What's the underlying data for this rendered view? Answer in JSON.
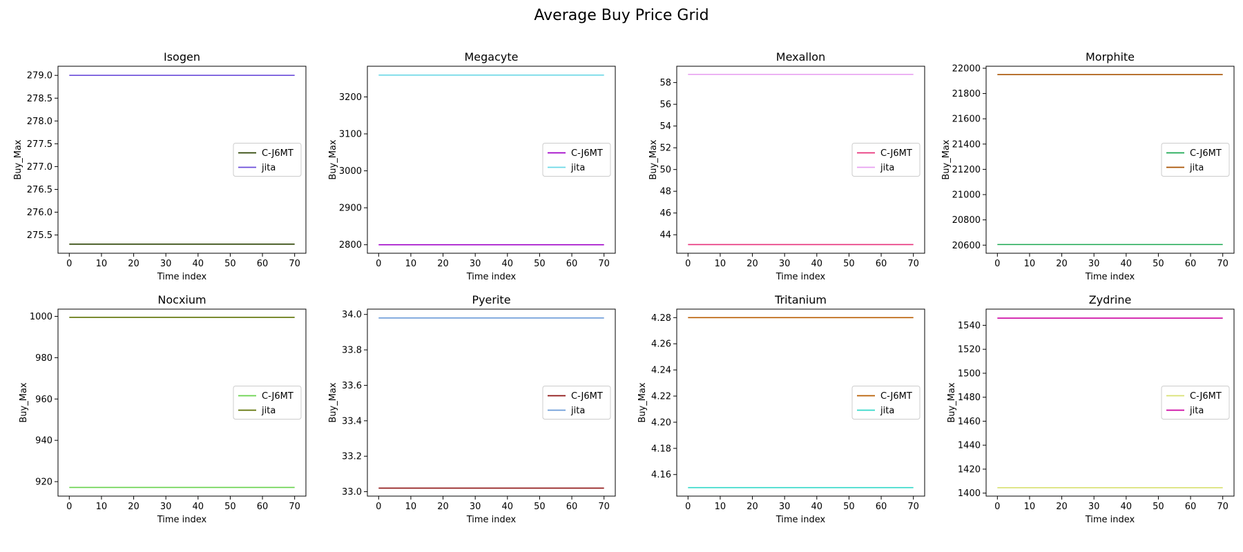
{
  "figure": {
    "title": "Average Buy Price Grid"
  },
  "chart_data": [
    {
      "type": "line",
      "title": "Isogen",
      "xlabel": "Time index",
      "ylabel": "Buy_Max",
      "xlim": [
        -3.5,
        73.5
      ],
      "ylim": [
        275.1,
        279.2
      ],
      "xticks": [
        0,
        10,
        20,
        30,
        40,
        50,
        60,
        70
      ],
      "yticks": [
        275.5,
        276.0,
        276.5,
        277.0,
        277.5,
        278.0,
        278.5,
        279.0
      ],
      "ydecimals": 1,
      "legend": "center-right",
      "series": [
        {
          "name": "C-J6MT",
          "color": "#2a4200",
          "x": [
            0,
            70
          ],
          "values": [
            275.3,
            275.3
          ]
        },
        {
          "name": "jita",
          "color": "#6a4bd9",
          "x": [
            0,
            70
          ],
          "values": [
            279.0,
            279.0
          ]
        }
      ]
    },
    {
      "type": "line",
      "title": "Megacyte",
      "xlabel": "Time index",
      "ylabel": "Buy_Max",
      "xlim": [
        -3.5,
        73.5
      ],
      "ylim": [
        2777,
        3283
      ],
      "xticks": [
        0,
        10,
        20,
        30,
        40,
        50,
        60,
        70
      ],
      "yticks": [
        2800,
        2900,
        3000,
        3100,
        3200
      ],
      "ydecimals": 0,
      "legend": "center-right",
      "series": [
        {
          "name": "C-J6MT",
          "color": "#a000c8",
          "x": [
            0,
            70
          ],
          "values": [
            2800,
            2800
          ]
        },
        {
          "name": "jita",
          "color": "#6ad8e6",
          "x": [
            0,
            70
          ],
          "values": [
            3259,
            3259
          ]
        }
      ]
    },
    {
      "type": "line",
      "title": "Mexallon",
      "xlabel": "Time index",
      "ylabel": "Buy_Max",
      "xlim": [
        -3.5,
        73.5
      ],
      "ylim": [
        42.3,
        59.5
      ],
      "xticks": [
        0,
        10,
        20,
        30,
        40,
        50,
        60,
        70
      ],
      "yticks": [
        44,
        46,
        48,
        50,
        52,
        54,
        56,
        58
      ],
      "ydecimals": 0,
      "legend": "center-right",
      "series": [
        {
          "name": "C-J6MT",
          "color": "#e8307a",
          "x": [
            0,
            70
          ],
          "values": [
            43.1,
            43.1
          ]
        },
        {
          "name": "jita",
          "color": "#e8a0f0",
          "x": [
            0,
            70
          ],
          "values": [
            58.75,
            58.75
          ]
        }
      ]
    },
    {
      "type": "line",
      "title": "Morphite",
      "xlabel": "Time index",
      "ylabel": "Buy_Max",
      "xlim": [
        -3.5,
        73.5
      ],
      "ylim": [
        20536,
        22016
      ],
      "xticks": [
        0,
        10,
        20,
        30,
        40,
        50,
        60,
        70
      ],
      "yticks": [
        20600,
        20800,
        21000,
        21200,
        21400,
        21600,
        21800,
        22000
      ],
      "ydecimals": 0,
      "legend": "center-right",
      "series": [
        {
          "name": "C-J6MT",
          "color": "#1aa850",
          "x": [
            0,
            70
          ],
          "values": [
            20605,
            20605
          ]
        },
        {
          "name": "jita",
          "color": "#a85200",
          "x": [
            0,
            70
          ],
          "values": [
            21950,
            21950
          ]
        }
      ]
    },
    {
      "type": "line",
      "title": "Nocxium",
      "xlabel": "Time index",
      "ylabel": "Buy_Max",
      "xlim": [
        -3.5,
        73.5
      ],
      "ylim": [
        913,
        1003.5
      ],
      "xticks": [
        0,
        10,
        20,
        30,
        40,
        50,
        60,
        70
      ],
      "yticks": [
        920,
        940,
        960,
        980,
        1000
      ],
      "ydecimals": 0,
      "legend": "center-right",
      "series": [
        {
          "name": "C-J6MT",
          "color": "#66d24a",
          "x": [
            0,
            70
          ],
          "values": [
            917.2,
            917.2
          ]
        },
        {
          "name": "jita",
          "color": "#5c7000",
          "x": [
            0,
            70
          ],
          "values": [
            999.5,
            999.5
          ]
        }
      ]
    },
    {
      "type": "line",
      "title": "Pyerite",
      "xlabel": "Time index",
      "ylabel": "Buy_Max",
      "xlim": [
        -3.5,
        73.5
      ],
      "ylim": [
        32.975,
        34.03
      ],
      "xticks": [
        0,
        10,
        20,
        30,
        40,
        50,
        60,
        70
      ],
      "yticks": [
        33.0,
        33.2,
        33.4,
        33.6,
        33.8,
        34.0
      ],
      "ydecimals": 1,
      "legend": "center-right",
      "series": [
        {
          "name": "C-J6MT",
          "color": "#8c1010",
          "x": [
            0,
            70
          ],
          "values": [
            33.02,
            33.02
          ]
        },
        {
          "name": "jita",
          "color": "#6a9ad8",
          "x": [
            0,
            70
          ],
          "values": [
            33.98,
            33.98
          ]
        }
      ]
    },
    {
      "type": "line",
      "title": "Tritanium",
      "xlabel": "Time index",
      "ylabel": "Buy_Max",
      "xlim": [
        -3.5,
        73.5
      ],
      "ylim": [
        4.1435,
        4.2865
      ],
      "xticks": [
        0,
        10,
        20,
        30,
        40,
        50,
        60,
        70
      ],
      "yticks": [
        4.16,
        4.18,
        4.2,
        4.22,
        4.24,
        4.26,
        4.28
      ],
      "ydecimals": 2,
      "legend": "center-right",
      "series": [
        {
          "name": "C-J6MT",
          "color": "#b85c00",
          "x": [
            0,
            70
          ],
          "values": [
            4.28,
            4.28
          ]
        },
        {
          "name": "jita",
          "color": "#30d8c8",
          "x": [
            0,
            70
          ],
          "values": [
            4.15,
            4.15
          ]
        }
      ]
    },
    {
      "type": "line",
      "title": "Zydrine",
      "xlabel": "Time index",
      "ylabel": "Buy_Max",
      "xlim": [
        -3.5,
        73.5
      ],
      "ylim": [
        1397.5,
        1553.5
      ],
      "xticks": [
        0,
        10,
        20,
        30,
        40,
        50,
        60,
        70
      ],
      "yticks": [
        1400,
        1420,
        1440,
        1460,
        1480,
        1500,
        1520,
        1540
      ],
      "ydecimals": 0,
      "legend": "center-right",
      "series": [
        {
          "name": "C-J6MT",
          "color": "#d8e070",
          "x": [
            0,
            70
          ],
          "values": [
            1404.5,
            1404.5
          ]
        },
        {
          "name": "jita",
          "color": "#cc00a0",
          "x": [
            0,
            70
          ],
          "values": [
            1546,
            1546
          ]
        }
      ]
    }
  ]
}
